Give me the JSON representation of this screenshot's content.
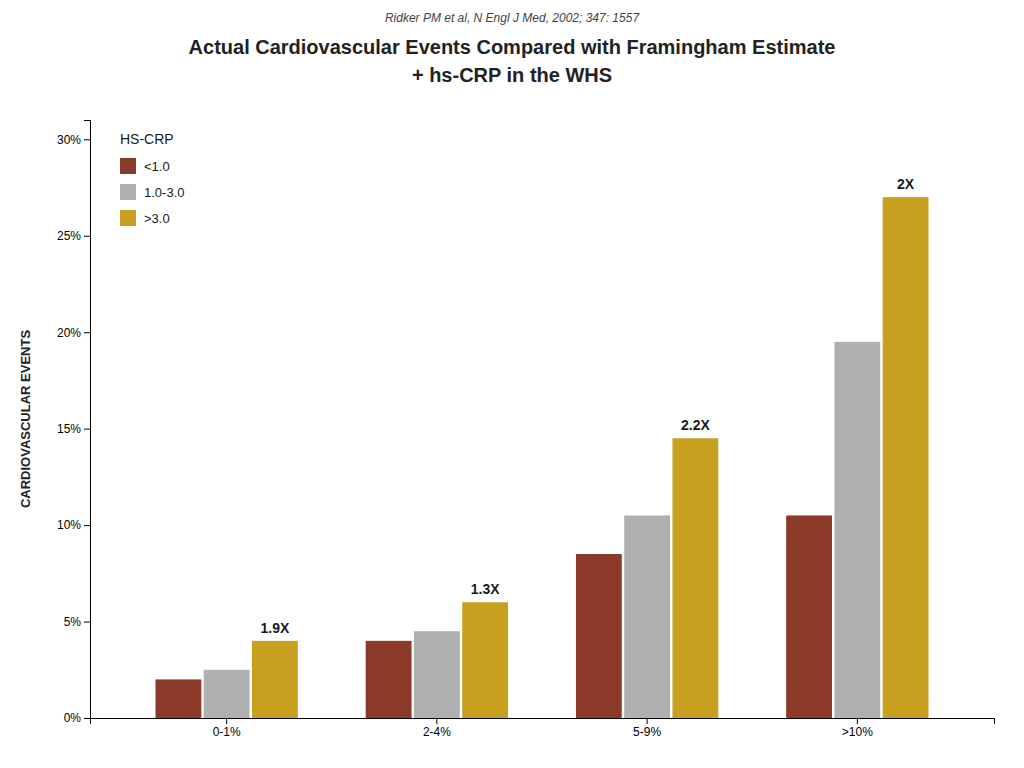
{
  "chart_data": {
    "type": "bar",
    "subtitle": "Ridker PM et al, N Engl J Med, 2002; 347: 1557",
    "title": [
      "Actual Cardiovascular Events Compared with Framingham Estimate",
      "+ hs-CRP in the WHS"
    ],
    "categories": [
      "0-1%",
      "2-4%",
      "5-9%",
      ">10%"
    ],
    "series": [
      {
        "name": "<1.0",
        "color": "#8B3A2A",
        "values": [
          2.0,
          4.0,
          8.5,
          10.5
        ]
      },
      {
        "name": "1.0-3.0",
        "color": "#B0B0B0",
        "values": [
          2.5,
          4.5,
          10.5,
          19.5
        ]
      },
      {
        "name": ">3.0",
        "color": "#C8A020",
        "values": [
          4.0,
          6.0,
          14.5,
          27.0
        ]
      }
    ],
    "annotations": [
      "1.9X",
      "1.3X",
      "2.2X",
      "2X"
    ],
    "ylabel": "CARDIOVASCULAR EVENTS",
    "legend_title": "HS-CRP",
    "legend": "upper left",
    "ylim": [
      0,
      31
    ],
    "yticks": [
      {
        "value": 0,
        "label": "0%"
      },
      {
        "value": 5,
        "label": "5%"
      },
      {
        "value": 10,
        "label": "10%"
      },
      {
        "value": 15,
        "label": "15%"
      },
      {
        "value": 20,
        "label": "20%"
      },
      {
        "value": 25,
        "label": "25%"
      },
      {
        "value": 30,
        "label": "30%"
      }
    ],
    "grid": false
  }
}
